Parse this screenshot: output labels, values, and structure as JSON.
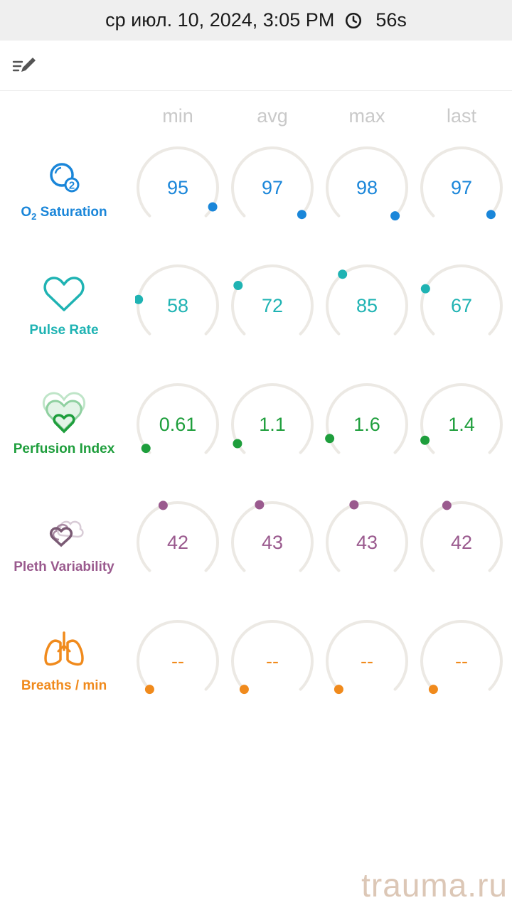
{
  "status_bar": {
    "datetime": "ср июл. 10, 2024, 3:05 PM",
    "duration": "56s"
  },
  "columns": [
    "min",
    "avg",
    "max",
    "last"
  ],
  "rows": [
    {
      "id": "spo2",
      "label_main": "O",
      "label_sub": "2",
      "label_rest": " Saturation",
      "color": "#1a86d9",
      "icon": "o2-bubble-icon",
      "values": [
        "95",
        "97",
        "98",
        "97"
      ],
      "levels": [
        0.94,
        0.99,
        1.0,
        0.99
      ]
    },
    {
      "id": "pulse",
      "label": "Pulse Rate",
      "color": "#1fb3b3",
      "icon": "heart-icon",
      "values": [
        "58",
        "72",
        "85",
        "67"
      ],
      "levels": [
        0.2,
        0.28,
        0.36,
        0.26
      ]
    },
    {
      "id": "perfusion",
      "label": "Perfusion Index",
      "color": "#1e9e3c",
      "icon": "layered-hearts-icon",
      "values": [
        "0.61",
        "1.1",
        "1.6",
        "1.4"
      ],
      "levels": [
        0.03,
        0.06,
        0.09,
        0.08
      ]
    },
    {
      "id": "pleth",
      "label": "Pleth Variability",
      "color": "#9a5a8e",
      "icon": "pleth-hearts-icon",
      "values": [
        "42",
        "43",
        "43",
        "42"
      ],
      "levels": [
        0.42,
        0.43,
        0.43,
        0.42
      ]
    },
    {
      "id": "breaths",
      "label": "Breaths / min",
      "color": "#f08a1c",
      "icon": "lungs-icon",
      "values": [
        "--",
        "--",
        "--",
        "--"
      ],
      "levels": [
        0,
        0,
        0,
        0
      ]
    }
  ],
  "watermark": "trauma.ru"
}
